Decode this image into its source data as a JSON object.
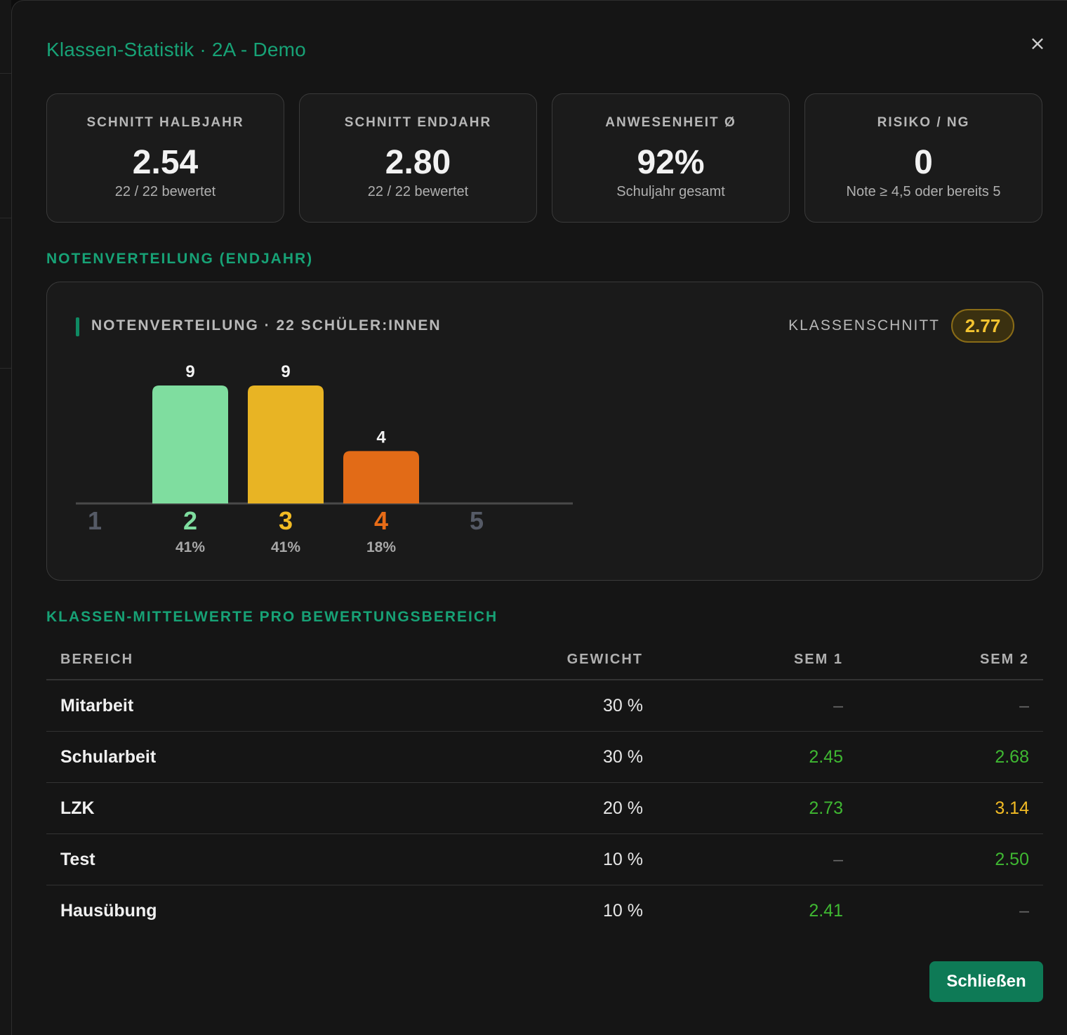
{
  "modal": {
    "title": "Klassen-Statistik · 2A - Demo",
    "close_label": "×",
    "primary_button": "Schließen"
  },
  "cards": [
    {
      "label": "SCHNITT HALBJAHR",
      "value": "2.54",
      "sub": "22 / 22 bewertet"
    },
    {
      "label": "SCHNITT ENDJAHR",
      "value": "2.80",
      "sub": "22 / 22 bewertet"
    },
    {
      "label": "ANWESENHEIT Ø",
      "value": "92%",
      "sub": "Schuljahr gesamt"
    },
    {
      "label": "RISIKO / NG",
      "value": "0",
      "sub": "Note ≥ 4,5 oder bereits 5"
    }
  ],
  "distribution": {
    "section_title": "NOTENVERTEILUNG (ENDJAHR)",
    "chart_title": "NOTENVERTEILUNG · 22 SCHÜLER:INNEN",
    "average_label": "KLASSENSCHNITT",
    "average_value": "2.77"
  },
  "chart_data": {
    "type": "bar",
    "categories": [
      "1",
      "2",
      "3",
      "4",
      "5"
    ],
    "values": [
      0,
      9,
      9,
      4,
      0
    ],
    "percent_labels": [
      "",
      "41%",
      "41%",
      "18%",
      ""
    ],
    "colors": [
      "#777777",
      "#7fdd9f",
      "#e8b424",
      "#e26b17",
      "#777777"
    ],
    "label_colors": [
      "#555a66",
      "#7fdd9f",
      "#f2bb24",
      "#e86c17",
      "#555a66"
    ],
    "ylim": [
      0,
      9
    ]
  },
  "table": {
    "section_title": "KLASSEN-MITTELWERTE PRO BEWERTUNGSBEREICH",
    "headers": [
      "BEREICH",
      "GEWICHT",
      "SEM 1",
      "SEM 2"
    ],
    "rows": [
      {
        "name": "Mitarbeit",
        "weight": "30 %",
        "sem1": "–",
        "sem2": "–",
        "sem1_color": "#6a6a6a",
        "sem2_color": "#6a6a6a"
      },
      {
        "name": "Schularbeit",
        "weight": "30 %",
        "sem1": "2.45",
        "sem2": "2.68",
        "sem1_color": "#3fb832",
        "sem2_color": "#3fb832"
      },
      {
        "name": "LZK",
        "weight": "20 %",
        "sem1": "2.73",
        "sem2": "3.14",
        "sem1_color": "#3fb832",
        "sem2_color": "#f2bb24"
      },
      {
        "name": "Test",
        "weight": "10 %",
        "sem1": "–",
        "sem2": "2.50",
        "sem1_color": "#6a6a6a",
        "sem2_color": "#3fb832"
      },
      {
        "name": "Hausübung",
        "weight": "10 %",
        "sem1": "2.41",
        "sem2": "–",
        "sem1_color": "#3fb832",
        "sem2_color": "#6a6a6a"
      }
    ]
  }
}
